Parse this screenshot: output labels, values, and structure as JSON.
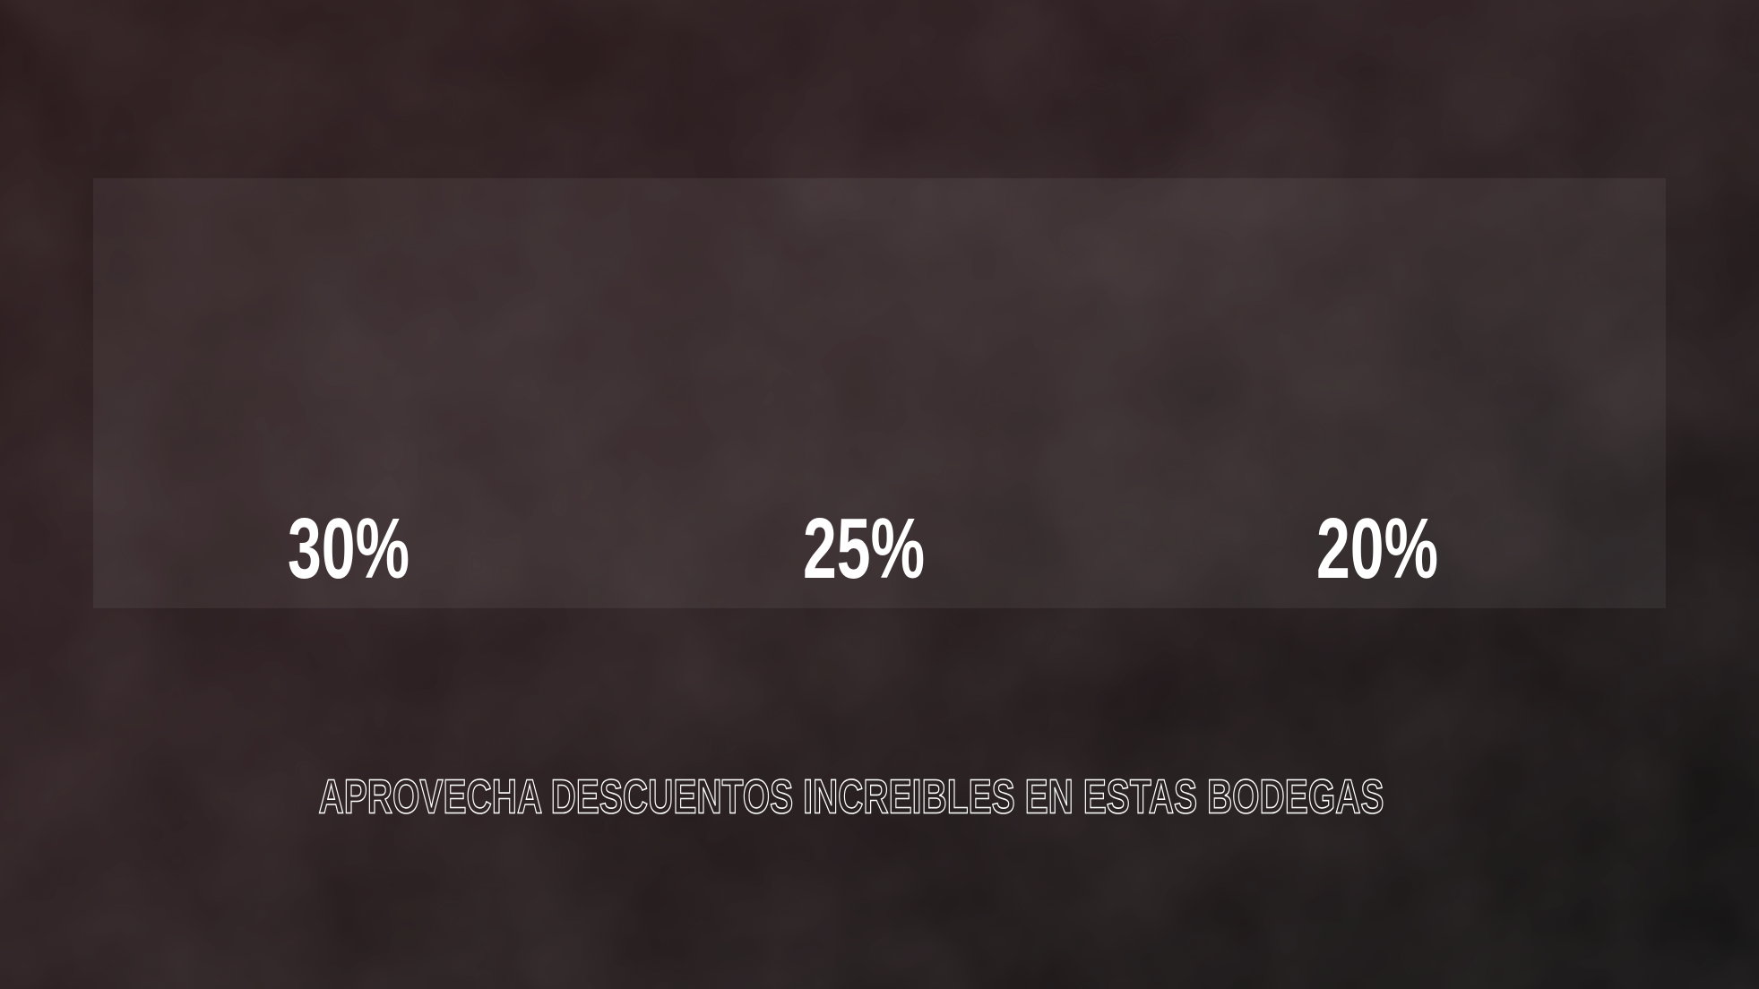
{
  "discounts": [
    "30%",
    "25%",
    "20%"
  ],
  "tagline": "APROVECHA DESCUENTOS INCREIBLES EN ESTAS BODEGAS"
}
